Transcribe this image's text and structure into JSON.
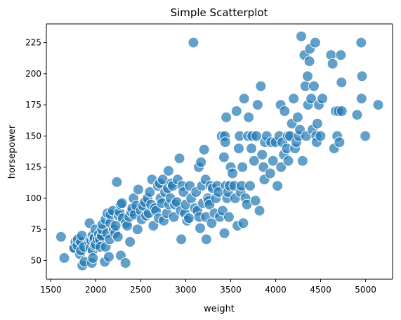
{
  "chart_data": {
    "type": "scatter",
    "title": "Simple Scatterplot",
    "xlabel": "weight",
    "ylabel": "horsepower",
    "xlim": [
      1450,
      5300
    ],
    "ylim": [
      35,
      240
    ],
    "xticks": [
      1500,
      2000,
      2500,
      3000,
      3500,
      4000,
      4500,
      5000
    ],
    "yticks": [
      50,
      75,
      100,
      125,
      150,
      175,
      200,
      225
    ],
    "grid": false,
    "legend": "none",
    "marker_color": "#1f77b4",
    "marker_edge_color": "#ffffff",
    "marker_opacity": 0.7,
    "points": [
      [
        1613,
        69
      ],
      [
        1649,
        52
      ],
      [
        1755,
        60
      ],
      [
        1760,
        60
      ],
      [
        1773,
        65
      ],
      [
        1795,
        62
      ],
      [
        1800,
        67
      ],
      [
        1825,
        55
      ],
      [
        1834,
        65
      ],
      [
        1835,
        58
      ],
      [
        1845,
        70
      ],
      [
        1850,
        46
      ],
      [
        1867,
        61
      ],
      [
        1875,
        49
      ],
      [
        1925,
        65
      ],
      [
        1930,
        80
      ],
      [
        1937,
        67
      ],
      [
        1940,
        60
      ],
      [
        1950,
        66
      ],
      [
        1955,
        48
      ],
      [
        1963,
        70
      ],
      [
        1965,
        58
      ],
      [
        1968,
        52
      ],
      [
        1975,
        67
      ],
      [
        1985,
        68
      ],
      [
        1990,
        62
      ],
      [
        1995,
        75
      ],
      [
        2000,
        63
      ],
      [
        2019,
        67
      ],
      [
        2035,
        71
      ],
      [
        2045,
        67
      ],
      [
        2050,
        61
      ],
      [
        2065,
        70
      ],
      [
        2070,
        75
      ],
      [
        2074,
        79
      ],
      [
        2100,
        49
      ],
      [
        2108,
        83
      ],
      [
        2110,
        61
      ],
      [
        2125,
        72
      ],
      [
        2130,
        88
      ],
      [
        2145,
        53
      ],
      [
        2155,
        67
      ],
      [
        2160,
        80
      ],
      [
        2164,
        87
      ],
      [
        2190,
        90
      ],
      [
        2200,
        75
      ],
      [
        2215,
        72
      ],
      [
        2220,
        78
      ],
      [
        2234,
        113
      ],
      [
        2245,
        69
      ],
      [
        2255,
        86
      ],
      [
        2265,
        89
      ],
      [
        2275,
        95
      ],
      [
        2278,
        54
      ],
      [
        2290,
        96
      ],
      [
        2300,
        84
      ],
      [
        2330,
        48
      ],
      [
        2335,
        80
      ],
      [
        2350,
        78
      ],
      [
        2372,
        85
      ],
      [
        2380,
        65
      ],
      [
        2395,
        89
      ],
      [
        2405,
        92
      ],
      [
        2420,
        100
      ],
      [
        2430,
        87
      ],
      [
        2450,
        94
      ],
      [
        2464,
        75
      ],
      [
        2472,
        107
      ],
      [
        2500,
        90
      ],
      [
        2510,
        83
      ],
      [
        2525,
        94
      ],
      [
        2545,
        97
      ],
      [
        2560,
        86
      ],
      [
        2575,
        100
      ],
      [
        2588,
        88
      ],
      [
        2600,
        105
      ],
      [
        2615,
        95
      ],
      [
        2625,
        115
      ],
      [
        2640,
        78
      ],
      [
        2655,
        92
      ],
      [
        2670,
        90
      ],
      [
        2690,
        110
      ],
      [
        2700,
        84
      ],
      [
        2711,
        112
      ],
      [
        2720,
        100
      ],
      [
        2735,
        96
      ],
      [
        2745,
        115
      ],
      [
        2755,
        82
      ],
      [
        2770,
        105
      ],
      [
        2790,
        88
      ],
      [
        2800,
        108
      ],
      [
        2808,
        122
      ],
      [
        2815,
        95
      ],
      [
        2830,
        100
      ],
      [
        2840,
        112
      ],
      [
        2855,
        110
      ],
      [
        2868,
        85
      ],
      [
        2880,
        95
      ],
      [
        2900,
        97
      ],
      [
        2910,
        115
      ],
      [
        2930,
        132
      ],
      [
        2945,
        90
      ],
      [
        2950,
        67
      ],
      [
        2962,
        110
      ],
      [
        2975,
        105
      ],
      [
        2990,
        88
      ],
      [
        3000,
        95
      ],
      [
        3015,
        82
      ],
      [
        3035,
        84
      ],
      [
        3045,
        110
      ],
      [
        3060,
        100
      ],
      [
        3085,
        225
      ],
      [
        3100,
        92
      ],
      [
        3115,
        105
      ],
      [
        3130,
        90
      ],
      [
        3145,
        125
      ],
      [
        3150,
        85
      ],
      [
        3160,
        76
      ],
      [
        3170,
        129
      ],
      [
        3180,
        110
      ],
      [
        3190,
        96
      ],
      [
        3205,
        139
      ],
      [
        3220,
        115
      ],
      [
        3225,
        85
      ],
      [
        3230,
        67
      ],
      [
        3245,
        100
      ],
      [
        3255,
        98
      ],
      [
        3265,
        95
      ],
      [
        3275,
        110
      ],
      [
        3288,
        80
      ],
      [
        3300,
        108
      ],
      [
        3320,
        88
      ],
      [
        3335,
        100
      ],
      [
        3350,
        110
      ],
      [
        3365,
        105
      ],
      [
        3380,
        85
      ],
      [
        3400,
        150
      ],
      [
        3410,
        90
      ],
      [
        3425,
        133
      ],
      [
        3430,
        72
      ],
      [
        3435,
        150
      ],
      [
        3440,
        145
      ],
      [
        3445,
        110
      ],
      [
        3450,
        165
      ],
      [
        3460,
        100
      ],
      [
        3470,
        105
      ],
      [
        3480,
        85
      ],
      [
        3490,
        110
      ],
      [
        3500,
        125
      ],
      [
        3520,
        120
      ],
      [
        3540,
        110
      ],
      [
        3550,
        100
      ],
      [
        3565,
        170
      ],
      [
        3575,
        78
      ],
      [
        3590,
        140
      ],
      [
        3600,
        150
      ],
      [
        3610,
        105
      ],
      [
        3620,
        110
      ],
      [
        3630,
        125
      ],
      [
        3640,
        80
      ],
      [
        3650,
        180
      ],
      [
        3665,
        100
      ],
      [
        3680,
        95
      ],
      [
        3693,
        150
      ],
      [
        3700,
        165
      ],
      [
        3715,
        110
      ],
      [
        3730,
        140
      ],
      [
        3740,
        150
      ],
      [
        3760,
        130
      ],
      [
        3775,
        98
      ],
      [
        3785,
        150
      ],
      [
        3800,
        175
      ],
      [
        3820,
        90
      ],
      [
        3835,
        190
      ],
      [
        3850,
        135
      ],
      [
        3865,
        125
      ],
      [
        3875,
        115
      ],
      [
        3880,
        145
      ],
      [
        3900,
        150
      ],
      [
        3940,
        120
      ],
      [
        3950,
        145
      ],
      [
        3970,
        130
      ],
      [
        4000,
        145
      ],
      [
        4020,
        110
      ],
      [
        4040,
        150
      ],
      [
        4055,
        175
      ],
      [
        4060,
        125
      ],
      [
        4075,
        145
      ],
      [
        4090,
        135
      ],
      [
        4100,
        170
      ],
      [
        4125,
        140
      ],
      [
        4135,
        150
      ],
      [
        4140,
        130
      ],
      [
        4160,
        150
      ],
      [
        4180,
        160
      ],
      [
        4200,
        180
      ],
      [
        4215,
        140
      ],
      [
        4230,
        145
      ],
      [
        4245,
        165
      ],
      [
        4257,
        150
      ],
      [
        4270,
        155
      ],
      [
        4285,
        230
      ],
      [
        4300,
        130
      ],
      [
        4320,
        215
      ],
      [
        4330,
        190
      ],
      [
        4340,
        150
      ],
      [
        4355,
        198
      ],
      [
        4360,
        175
      ],
      [
        4375,
        210
      ],
      [
        4382,
        220
      ],
      [
        4395,
        180
      ],
      [
        4410,
        155
      ],
      [
        4425,
        190
      ],
      [
        4440,
        225
      ],
      [
        4450,
        150
      ],
      [
        4456,
        145
      ],
      [
        4464,
        160
      ],
      [
        4480,
        175
      ],
      [
        4499,
        150
      ],
      [
        4520,
        180
      ],
      [
        4615,
        215
      ],
      [
        4633,
        208
      ],
      [
        4650,
        140
      ],
      [
        4668,
        170
      ],
      [
        4685,
        150
      ],
      [
        4699,
        170
      ],
      [
        4710,
        145
      ],
      [
        4725,
        215
      ],
      [
        4732,
        193
      ],
      [
        4735,
        170
      ],
      [
        4906,
        167
      ],
      [
        4951,
        225
      ],
      [
        4955,
        180
      ],
      [
        4960,
        198
      ],
      [
        4997,
        150
      ],
      [
        5140,
        175
      ]
    ]
  }
}
